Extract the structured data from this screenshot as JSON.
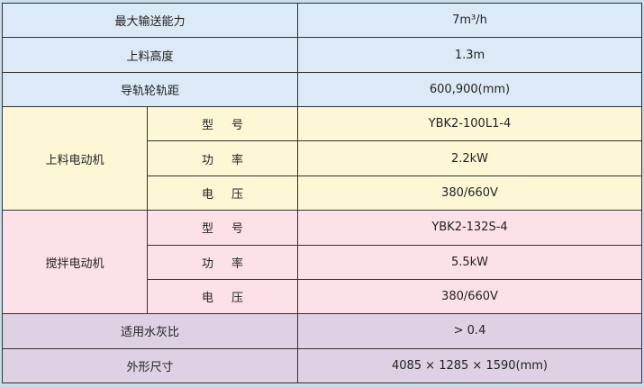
{
  "colors": {
    "general": "#dbeaf6",
    "feed_motor": "#fdf7d6",
    "mix_motor": "#fde1e8",
    "other": "#ddd1e3"
  },
  "rows_top": [
    {
      "label": "最大输送能力",
      "value": "7m³/h"
    },
    {
      "label": "上料高度",
      "value": "1.3m"
    },
    {
      "label": "导轨轮轨距",
      "value": "600,900(mm)"
    }
  ],
  "feed_motor": {
    "label": "上料电动机",
    "items": [
      {
        "label": "型号",
        "value": "YBK2-100L1-4"
      },
      {
        "label": "功率",
        "value": "2.2kW"
      },
      {
        "label": "电压",
        "value": "380/660V"
      }
    ]
  },
  "mix_motor": {
    "label": "搅拌电动机",
    "items": [
      {
        "label": "型号",
        "value": "YBK2-132S-4"
      },
      {
        "label": "功率",
        "value": "5.5kW"
      },
      {
        "label": "电压",
        "value": "380/660V"
      }
    ]
  },
  "rows_bottom": [
    {
      "label": "适用水灰比",
      "value": "> 0.4"
    },
    {
      "label": "外形尺寸",
      "value": "4085 × 1285 × 1590(mm)"
    }
  ]
}
